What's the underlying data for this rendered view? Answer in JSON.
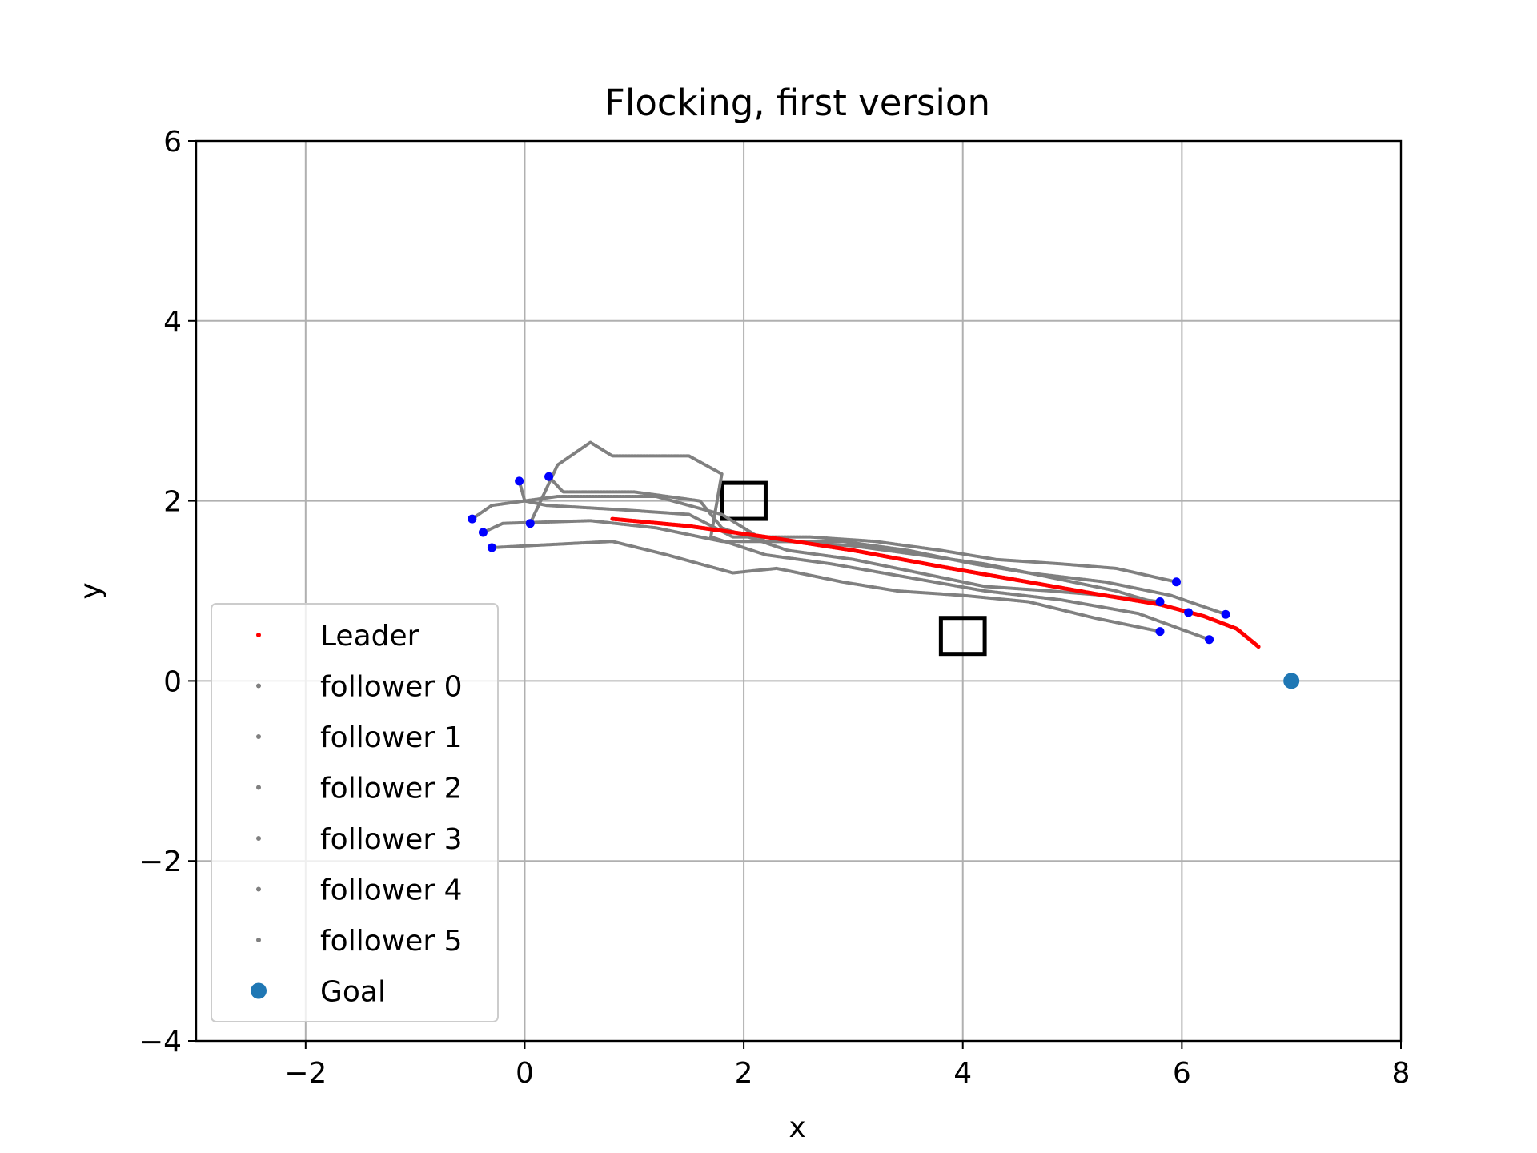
{
  "chart_data": {
    "type": "scatter",
    "title": "Flocking, first version",
    "xlabel": "x",
    "ylabel": "y",
    "xlim": [
      -3,
      8
    ],
    "ylim": [
      -4,
      6
    ],
    "xticks": [
      -2,
      0,
      2,
      4,
      6,
      8
    ],
    "yticks": [
      -4,
      -2,
      0,
      2,
      4,
      6
    ],
    "xtick_labels": [
      "−2",
      "0",
      "2",
      "4",
      "6",
      "8"
    ],
    "ytick_labels": [
      "−4",
      "−2",
      "0",
      "2",
      "4",
      "6"
    ],
    "grid": true,
    "legend_position": "lower-left",
    "colors": {
      "leader": "#ff0000",
      "follower": "#808080",
      "endpoint": "#0000ff",
      "goal": "#1f77b4",
      "obstacle": "#000000"
    },
    "series": [
      {
        "name": "Leader",
        "color": "#ff0000",
        "points": [
          [
            0.8,
            1.8
          ],
          [
            1.5,
            1.72
          ],
          [
            2.2,
            1.6
          ],
          [
            3.0,
            1.45
          ],
          [
            3.8,
            1.27
          ],
          [
            4.5,
            1.12
          ],
          [
            5.2,
            0.97
          ],
          [
            5.8,
            0.85
          ],
          [
            6.2,
            0.72
          ],
          [
            6.5,
            0.58
          ],
          [
            6.7,
            0.38
          ]
        ]
      },
      {
        "name": "follower 0",
        "color": "#808080",
        "points": [
          [
            -0.05,
            2.22
          ],
          [
            0.0,
            2.0
          ],
          [
            0.2,
            1.95
          ],
          [
            0.9,
            1.9
          ],
          [
            1.5,
            1.85
          ],
          [
            1.9,
            1.6
          ],
          [
            2.6,
            1.6
          ],
          [
            3.2,
            1.55
          ],
          [
            3.8,
            1.45
          ],
          [
            4.3,
            1.35
          ],
          [
            4.9,
            1.3
          ],
          [
            5.4,
            1.25
          ],
          [
            5.95,
            1.1
          ]
        ],
        "start": [
          -0.05,
          2.22
        ],
        "end": [
          5.95,
          1.1
        ]
      },
      {
        "name": "follower 1",
        "color": "#808080",
        "points": [
          [
            0.22,
            2.27
          ],
          [
            0.35,
            2.1
          ],
          [
            1.0,
            2.1
          ],
          [
            1.6,
            2.0
          ],
          [
            1.8,
            1.7
          ],
          [
            2.4,
            1.45
          ],
          [
            3.0,
            1.35
          ],
          [
            3.6,
            1.2
          ],
          [
            4.2,
            1.05
          ],
          [
            4.8,
            1.0
          ],
          [
            5.3,
            0.95
          ],
          [
            5.8,
            0.88
          ]
        ],
        "start": [
          0.22,
          2.27
        ],
        "end": [
          5.8,
          0.88
        ]
      },
      {
        "name": "follower 2",
        "color": "#808080",
        "points": [
          [
            -0.3,
            1.48
          ],
          [
            0.0,
            1.5
          ],
          [
            0.8,
            1.55
          ],
          [
            1.3,
            1.4
          ],
          [
            1.6,
            1.3
          ],
          [
            1.9,
            1.2
          ],
          [
            2.3,
            1.25
          ],
          [
            2.9,
            1.1
          ],
          [
            3.4,
            1.0
          ],
          [
            4.0,
            0.95
          ],
          [
            4.6,
            0.88
          ],
          [
            5.2,
            0.7
          ],
          [
            5.8,
            0.55
          ]
        ],
        "start": [
          -0.3,
          1.48
        ],
        "end": [
          5.8,
          0.55
        ]
      },
      {
        "name": "follower 3",
        "color": "#808080",
        "points": [
          [
            -0.38,
            1.65
          ],
          [
            -0.2,
            1.75
          ],
          [
            0.6,
            1.78
          ],
          [
            1.2,
            1.7
          ],
          [
            1.8,
            1.55
          ],
          [
            2.4,
            1.55
          ],
          [
            3.0,
            1.5
          ],
          [
            3.6,
            1.4
          ],
          [
            4.2,
            1.3
          ],
          [
            4.8,
            1.15
          ],
          [
            5.4,
            1.0
          ],
          [
            6.06,
            0.76
          ]
        ],
        "start": [
          -0.38,
          1.65
        ],
        "end": [
          6.06,
          0.76
        ]
      },
      {
        "name": "follower 4",
        "color": "#808080",
        "points": [
          [
            0.05,
            1.75
          ],
          [
            0.3,
            2.4
          ],
          [
            0.6,
            2.65
          ],
          [
            0.8,
            2.5
          ],
          [
            1.5,
            2.5
          ],
          [
            1.8,
            2.3
          ],
          [
            1.7,
            1.6
          ],
          [
            2.2,
            1.4
          ],
          [
            2.8,
            1.3
          ],
          [
            3.5,
            1.15
          ],
          [
            4.2,
            1.0
          ],
          [
            4.9,
            0.9
          ],
          [
            5.6,
            0.75
          ],
          [
            6.25,
            0.46
          ]
        ],
        "start": [
          0.05,
          1.75
        ],
        "end": [
          6.25,
          0.46
        ]
      },
      {
        "name": "follower 5",
        "color": "#808080",
        "points": [
          [
            -0.48,
            1.8
          ],
          [
            -0.3,
            1.95
          ],
          [
            0.3,
            2.05
          ],
          [
            1.2,
            2.05
          ],
          [
            1.8,
            1.85
          ],
          [
            2.2,
            1.55
          ],
          [
            2.9,
            1.55
          ],
          [
            3.5,
            1.45
          ],
          [
            4.1,
            1.3
          ],
          [
            4.6,
            1.2
          ],
          [
            5.3,
            1.1
          ],
          [
            5.9,
            0.95
          ],
          [
            6.4,
            0.74
          ]
        ],
        "start": [
          -0.48,
          1.8
        ],
        "end": [
          6.4,
          0.74
        ]
      }
    ],
    "goal": {
      "name": "Goal",
      "x": 7.0,
      "y": 0.0,
      "color": "#1f77b4"
    },
    "obstacles": [
      {
        "x0": 1.8,
        "y0": 1.8,
        "x1": 2.2,
        "y1": 2.2
      },
      {
        "x0": 3.8,
        "y0": 0.3,
        "x1": 4.2,
        "y1": 0.7
      }
    ]
  }
}
